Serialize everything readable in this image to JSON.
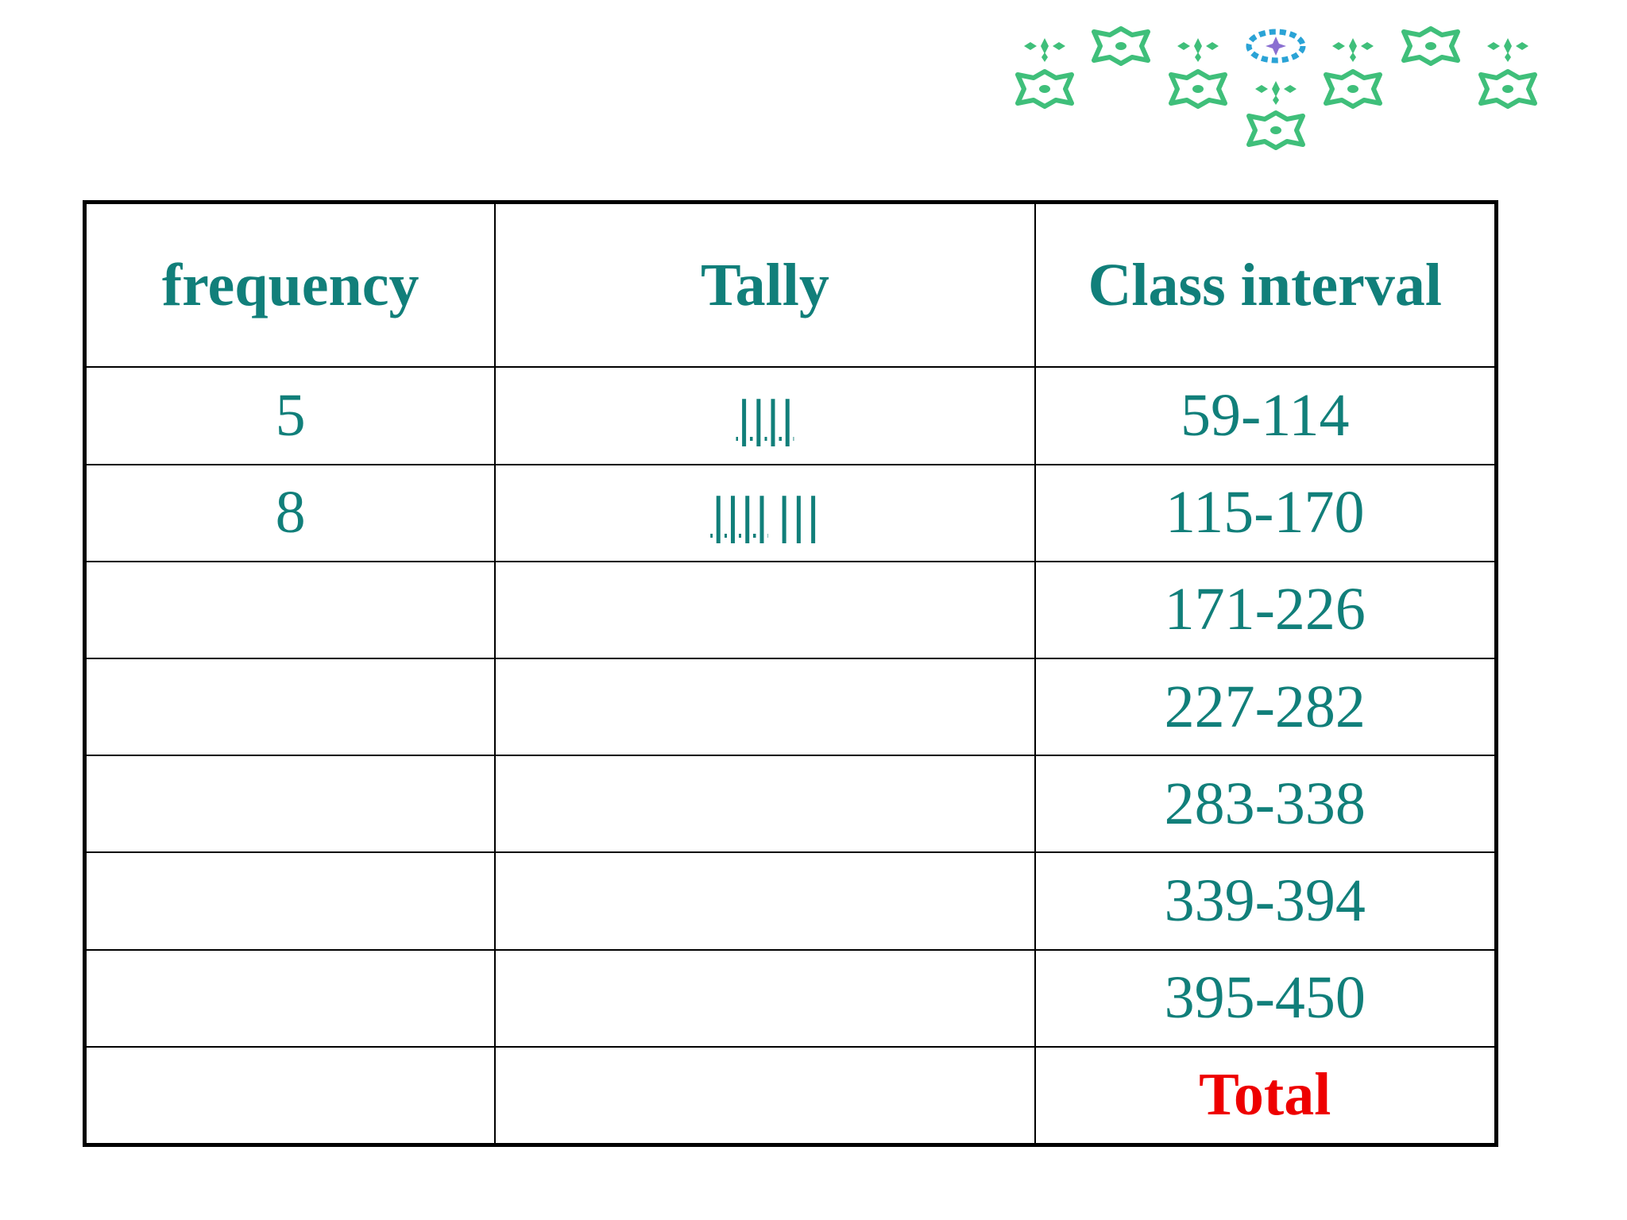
{
  "table": {
    "headers": {
      "frequency": "frequency",
      "tally": "Tally",
      "class_interval": "Class interval"
    },
    "rows": [
      {
        "frequency": "5",
        "tally_group": "||||",
        "tally_extra": "",
        "class_interval": "59-114"
      },
      {
        "frequency": "8",
        "tally_group": "||||",
        "tally_extra": "|||",
        "class_interval": "115-170"
      },
      {
        "frequency": "",
        "tally_group": "",
        "tally_extra": "",
        "class_interval": "171-226"
      },
      {
        "frequency": "",
        "tally_group": "",
        "tally_extra": "",
        "class_interval": "227-282"
      },
      {
        "frequency": "",
        "tally_group": "",
        "tally_extra": "",
        "class_interval": "283-338"
      },
      {
        "frequency": "",
        "tally_group": "",
        "tally_extra": "",
        "class_interval": "339-394"
      },
      {
        "frequency": "",
        "tally_group": "",
        "tally_extra": "",
        "class_interval": "395-450"
      }
    ],
    "total_label": "Total"
  },
  "colors": {
    "text_teal": "#117f7a",
    "total_red": "#ee0000",
    "ornament_green": "#3fbf7a",
    "ornament_blue": "#2aa3d6",
    "ornament_purple": "#8a6fd1"
  },
  "decoration": {
    "icon": "islamic-star-pattern-icon"
  }
}
